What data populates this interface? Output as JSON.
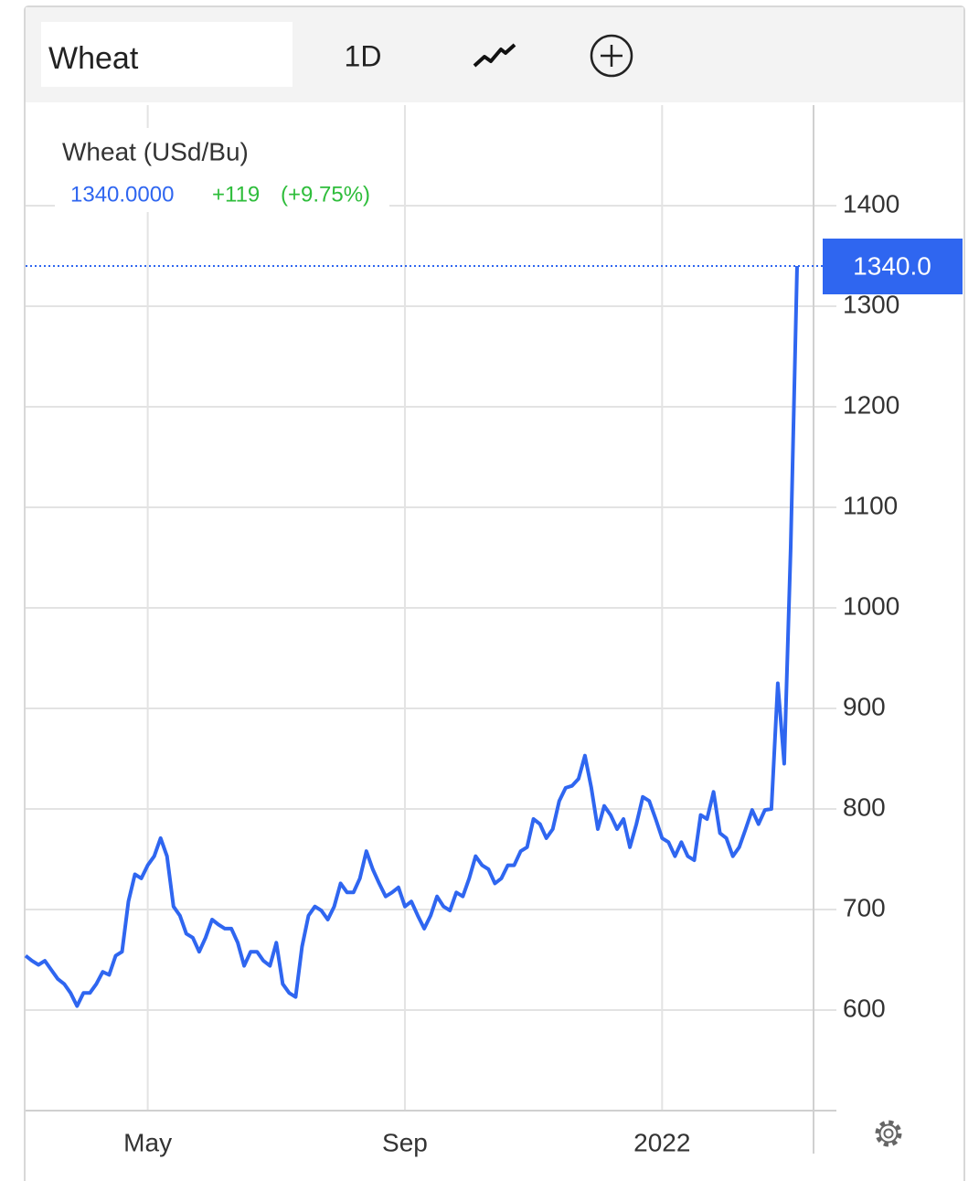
{
  "toolbar": {
    "symbol": "Wheat",
    "interval": "1D"
  },
  "chart_data": {
    "type": "line",
    "last_price": "1340.0000",
    "change": "+119",
    "change_percent": "(+9.75%)",
    "price_tag": "1340.0",
    "categories": [
      null,
      null,
      null,
      null,
      null,
      null,
      null,
      null,
      null,
      null,
      null,
      null,
      null,
      null,
      null,
      null,
      null,
      null,
      null,
      "May",
      null,
      null,
      null,
      null,
      null,
      null,
      null,
      null,
      null,
      null,
      null,
      null,
      null,
      null,
      null,
      null,
      null,
      null,
      null,
      null,
      null,
      null,
      null,
      null,
      null,
      null,
      null,
      null,
      null,
      null,
      null,
      null,
      null,
      null,
      null,
      null,
      null,
      null,
      null,
      "Sep",
      null,
      null,
      null,
      null,
      null,
      null,
      null,
      null,
      null,
      null,
      null,
      null,
      null,
      null,
      null,
      null,
      null,
      null,
      null,
      null,
      null,
      null,
      null,
      null,
      null,
      null,
      null,
      null,
      null,
      null,
      null,
      null,
      null,
      null,
      null,
      null,
      null,
      null,
      null,
      "2022",
      null,
      null,
      null,
      null,
      null,
      null,
      null,
      null,
      null,
      null,
      null,
      null,
      null,
      null,
      null,
      null,
      null,
      null,
      null,
      null,
      null
    ],
    "series": [
      {
        "name": "Wheat (USd/Bu)",
        "color": "#2f66f0",
        "values": [
          654,
          649,
          645,
          649,
          640,
          631,
          626,
          617,
          604,
          617,
          617,
          626,
          638,
          635,
          654,
          658,
          708,
          735,
          731,
          744,
          753,
          771,
          753,
          703,
          694,
          676,
          672,
          658,
          672,
          690,
          685,
          681,
          681,
          667,
          644,
          658,
          658,
          649,
          644,
          667,
          626,
          617,
          613,
          663,
          694,
          703,
          699,
          690,
          703,
          726,
          717,
          717,
          731,
          758,
          740,
          726,
          713,
          717,
          722,
          703,
          708,
          694,
          681,
          694,
          713,
          703,
          699,
          717,
          713,
          731,
          753,
          744,
          740,
          726,
          731,
          744,
          744,
          758,
          762,
          790,
          785,
          771,
          780,
          808,
          821,
          823,
          830,
          853,
          821,
          780,
          803,
          794,
          780,
          790,
          762,
          785,
          812,
          808,
          790,
          771,
          767,
          753,
          767,
          753,
          749,
          794,
          790,
          817,
          776,
          771,
          753,
          762,
          780,
          799,
          785,
          799,
          800,
          925,
          845,
          1060,
          1340
        ]
      }
    ],
    "ylim": [
      500,
      1500
    ],
    "yticks": [
      600,
      700,
      800,
      900,
      1000,
      1100,
      1200,
      1300,
      1400
    ],
    "grid": true
  }
}
